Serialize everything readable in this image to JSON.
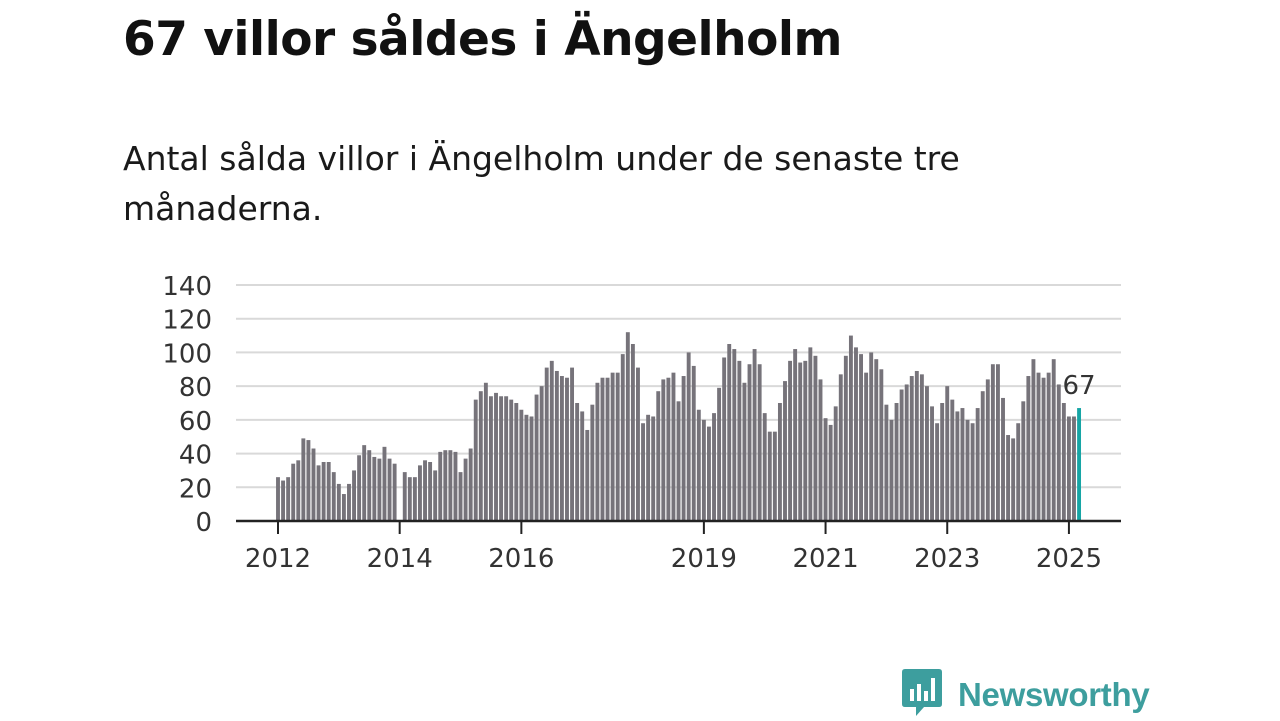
{
  "title": "67 villor såldes i Ängelholm",
  "subtitle": "Antal sålda villor i Ängelholm under de senaste tre månaderna.",
  "brand": {
    "name": "Newsworthy",
    "icon": "newsworthy-logo-icon",
    "color": "#3d9e9e"
  },
  "colors": {
    "bar": "#76737a",
    "highlight": "#16a5a5",
    "grid": "#d9d9d9",
    "axis": "#222222"
  },
  "chart_data": {
    "type": "bar",
    "ylim": [
      0,
      140
    ],
    "yticks": [
      0,
      20,
      40,
      60,
      80,
      100,
      120,
      140
    ],
    "xticks": [
      {
        "label": "2012",
        "month": 0
      },
      {
        "label": "2014",
        "month": 24
      },
      {
        "label": "2016",
        "month": 48
      },
      {
        "label": "2019",
        "month": 84
      },
      {
        "label": "2021",
        "month": 108
      },
      {
        "label": "2023",
        "month": 132
      },
      {
        "label": "2025",
        "month": 156
      }
    ],
    "grid": true,
    "start": "2012-01",
    "values": [
      26,
      24,
      26,
      34,
      36,
      49,
      48,
      43,
      33,
      35,
      35,
      29,
      22,
      16,
      22,
      30,
      39,
      45,
      42,
      38,
      37,
      44,
      37,
      34,
      0,
      29,
      26,
      26,
      33,
      36,
      35,
      30,
      41,
      42,
      42,
      41,
      29,
      37,
      43,
      72,
      77,
      82,
      74,
      76,
      74,
      74,
      72,
      70,
      66,
      63,
      62,
      75,
      80,
      91,
      95,
      89,
      86,
      85,
      91,
      70,
      65,
      54,
      69,
      82,
      85,
      85,
      88,
      88,
      99,
      112,
      105,
      91,
      58,
      63,
      62,
      77,
      84,
      85,
      88,
      71,
      86,
      100,
      92,
      66,
      60,
      56,
      64,
      79,
      97,
      105,
      102,
      95,
      82,
      93,
      102,
      93,
      64,
      53,
      53,
      70,
      83,
      95,
      102,
      94,
      95,
      103,
      98,
      84,
      61,
      57,
      68,
      87,
      98,
      110,
      103,
      99,
      88,
      100,
      96,
      90,
      69,
      60,
      70,
      78,
      81,
      86,
      89,
      87,
      80,
      68,
      58,
      70,
      80,
      72,
      65,
      67,
      60,
      58,
      67,
      77,
      84,
      93,
      93,
      73,
      51,
      49,
      58,
      71,
      86,
      96,
      88,
      85,
      88,
      96,
      81,
      70,
      62,
      62,
      67
    ],
    "highlight_label": "67"
  }
}
